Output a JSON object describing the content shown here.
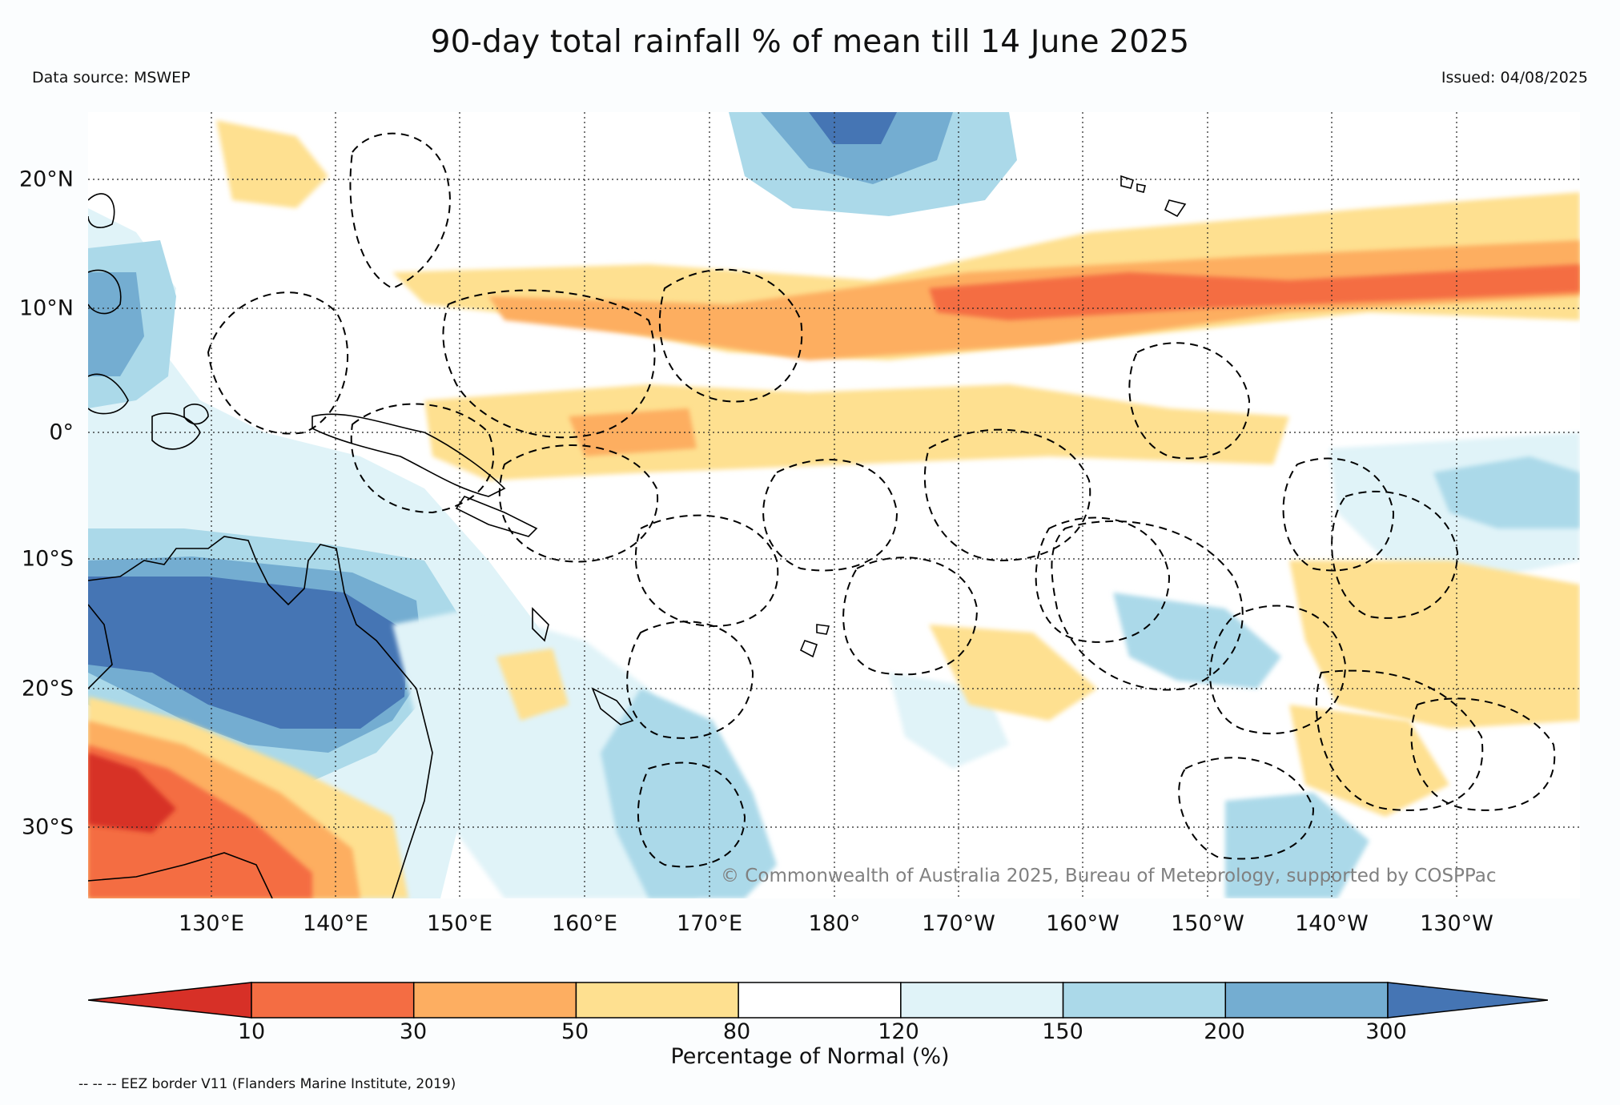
{
  "header": {
    "title": "90-day total rainfall % of mean till 14 June 2025",
    "source": "Data source: MSWEP",
    "issued": "Issued: 04/08/2025"
  },
  "map": {
    "lat_labels": [
      "20°N",
      "10°N",
      "0°",
      "10°S",
      "20°S",
      "30°S"
    ],
    "lon_labels": [
      "130°E",
      "140°E",
      "150°E",
      "160°E",
      "170°E",
      "180°",
      "170°W",
      "160°W",
      "150°W",
      "140°W",
      "130°W"
    ],
    "copyright": "© Commonwealth of Australia 2025, Bureau of Meteorology, supported by COSPPac"
  },
  "colorbar": {
    "label": "Percentage of Normal (%)",
    "ticks": [
      "10",
      "30",
      "50",
      "80",
      "120",
      "150",
      "200",
      "300"
    ],
    "colors": [
      "#d73027",
      "#f46d43",
      "#fdae61",
      "#fee090",
      "#ffffff",
      "#e0f3f8",
      "#abd9e9",
      "#74add1",
      "#4575b4"
    ]
  },
  "footer": {
    "eez_note": "-- -- -- EEZ border V11 (Flanders Marine Institute, 2019)"
  }
}
